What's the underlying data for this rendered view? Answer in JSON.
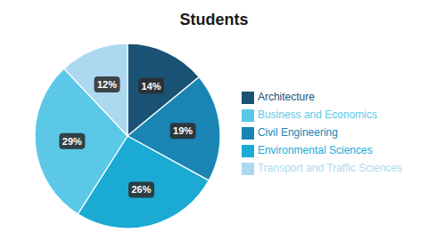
{
  "chart_data": {
    "type": "pie",
    "title": "Students",
    "categories": [
      "Architecture",
      "Civil Engineering",
      "Environmental Sciences",
      "Business and Economics",
      "Transport and Traffic Sciences"
    ],
    "values": [
      14,
      19,
      26,
      29,
      12
    ],
    "value_labels": [
      "14%",
      "19%",
      "26%",
      "29%",
      "12%"
    ],
    "colors": [
      "#1a5276",
      "#1a85b5",
      "#1aaad4",
      "#5bc8e8",
      "#acd9f0"
    ],
    "data_labels": true,
    "legend": "right"
  }
}
